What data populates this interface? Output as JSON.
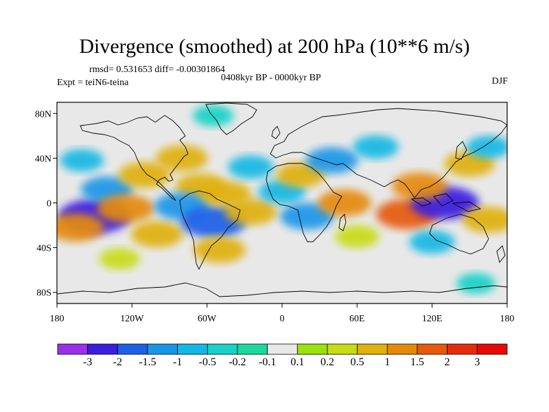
{
  "chart_data": {
    "type": "heatmap",
    "title": "Divergence (smoothed) at 200 hPa (10**6 m/s)",
    "stats_line": "rmsd= 0.531653 diff= -0.00301864",
    "period": "0408kyr BP - 0000kyr BP",
    "experiment": "Expt = teiN6-teina",
    "season": "DJF",
    "xlim": [
      -180,
      180
    ],
    "ylim": [
      -90,
      90
    ],
    "x_ticks": [
      {
        "value": -180,
        "label": "180"
      },
      {
        "value": -120,
        "label": "120W"
      },
      {
        "value": -60,
        "label": "60W"
      },
      {
        "value": 0,
        "label": "0"
      },
      {
        "value": 60,
        "label": "60E"
      },
      {
        "value": 120,
        "label": "120E"
      },
      {
        "value": 180,
        "label": "180"
      }
    ],
    "y_ticks": [
      {
        "value": 80,
        "label": "80N"
      },
      {
        "value": 40,
        "label": "40N"
      },
      {
        "value": 0,
        "label": "0"
      },
      {
        "value": -40,
        "label": "40S"
      },
      {
        "value": -80,
        "label": "80S"
      }
    ],
    "colorbar": {
      "levels": [
        -3,
        -2,
        -1.5,
        -1,
        -0.5,
        -0.2,
        -0.1,
        0.1,
        0.2,
        0.5,
        1,
        1.5,
        2,
        3
      ],
      "labels": [
        "-3",
        "-2",
        "-1.5",
        "-1",
        "-0.5",
        "-0.2",
        "-0.1",
        "0.1",
        "0.2",
        "0.5",
        "1",
        "1.5",
        "2",
        "3"
      ],
      "colors": [
        "#9b30e8",
        "#3a1fe0",
        "#1f5fe6",
        "#1a96e8",
        "#12b8e4",
        "#16d2c8",
        "#1cd89c",
        "#e8e8e8",
        "#9ae20c",
        "#c8dc14",
        "#e0b00c",
        "#e48a0a",
        "#e65a0a",
        "#e62c0c",
        "#e60a08"
      ]
    },
    "anomalies": [
      {
        "lon": -150,
        "lat": -12,
        "value": -2.2
      },
      {
        "lon": -140,
        "lat": 12,
        "value": -1.0
      },
      {
        "lon": -160,
        "lat": 38,
        "value": -0.5
      },
      {
        "lon": -125,
        "lat": -5,
        "value": 1.3
      },
      {
        "lon": -165,
        "lat": -22,
        "value": 1.3
      },
      {
        "lon": -110,
        "lat": 25,
        "value": 1.0
      },
      {
        "lon": -100,
        "lat": -28,
        "value": 1.0
      },
      {
        "lon": -80,
        "lat": 40,
        "value": 1.0
      },
      {
        "lon": -65,
        "lat": 15,
        "value": 0.9
      },
      {
        "lon": -80,
        "lat": -3,
        "value": -1.2
      },
      {
        "lon": -55,
        "lat": -17,
        "value": -1.8
      },
      {
        "lon": -45,
        "lat": 8,
        "value": 0.9
      },
      {
        "lon": -25,
        "lat": -8,
        "value": 1.0
      },
      {
        "lon": -50,
        "lat": -42,
        "value": 1.0
      },
      {
        "lon": -25,
        "lat": 32,
        "value": -0.6
      },
      {
        "lon": -55,
        "lat": 78,
        "value": -0.3
      },
      {
        "lon": 0,
        "lat": 10,
        "value": -0.7
      },
      {
        "lon": 20,
        "lat": -12,
        "value": -1.1
      },
      {
        "lon": 15,
        "lat": 25,
        "value": 0.8
      },
      {
        "lon": 50,
        "lat": 0,
        "value": 1.1
      },
      {
        "lon": 60,
        "lat": -30,
        "value": 0.5
      },
      {
        "lon": 40,
        "lat": 38,
        "value": -1.0
      },
      {
        "lon": 75,
        "lat": 50,
        "value": -0.6
      },
      {
        "lon": 100,
        "lat": -10,
        "value": 1.6
      },
      {
        "lon": 130,
        "lat": 0,
        "value": -2.0
      },
      {
        "lon": 110,
        "lat": 15,
        "value": 1.2
      },
      {
        "lon": 150,
        "lat": 35,
        "value": 0.9
      },
      {
        "lon": 165,
        "lat": 50,
        "value": -0.5
      },
      {
        "lon": 165,
        "lat": -15,
        "value": 1.0
      },
      {
        "lon": 120,
        "lat": -35,
        "value": -0.6
      },
      {
        "lon": 155,
        "lat": -72,
        "value": -0.2
      },
      {
        "lon": -130,
        "lat": -50,
        "value": 0.3
      }
    ]
  }
}
